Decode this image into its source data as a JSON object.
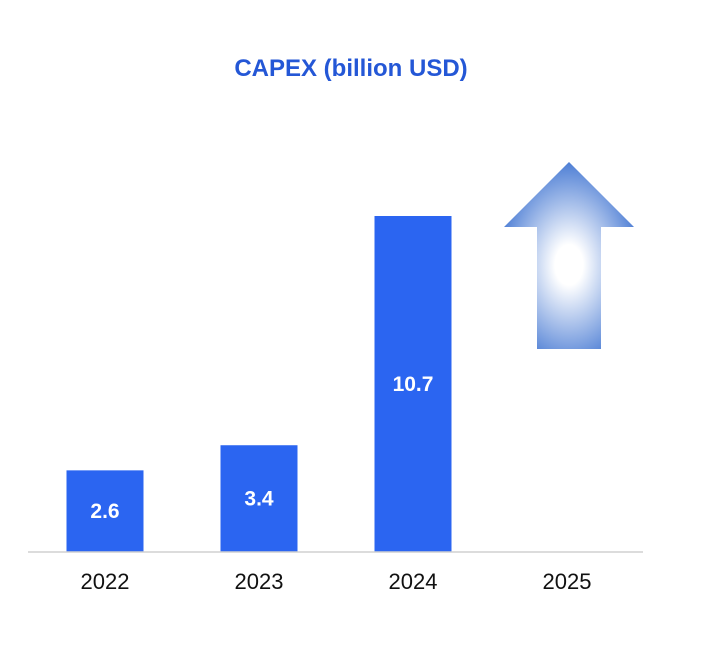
{
  "chart_data": {
    "type": "bar",
    "title": "CAPEX (billion USD)",
    "categories": [
      "2022",
      "2023",
      "2024",
      "2025"
    ],
    "values": [
      2.6,
      3.4,
      10.7,
      null
    ],
    "data_labels": [
      "2.6",
      "3.4",
      "10.7",
      ""
    ],
    "annotation": {
      "category": "2025",
      "symbol": "up-arrow-icon",
      "meaning": "increase"
    },
    "xlabel": "",
    "ylabel": "",
    "grid": false,
    "legend": "none"
  },
  "colors": {
    "bar": "#2b65f1",
    "title": "#2457d6",
    "axis": "#d0d0d0",
    "label_inside": "#ffffff",
    "tick_label": "#111111",
    "arrow_edge": "#3a70d0",
    "arrow_center": "#ffffff"
  }
}
